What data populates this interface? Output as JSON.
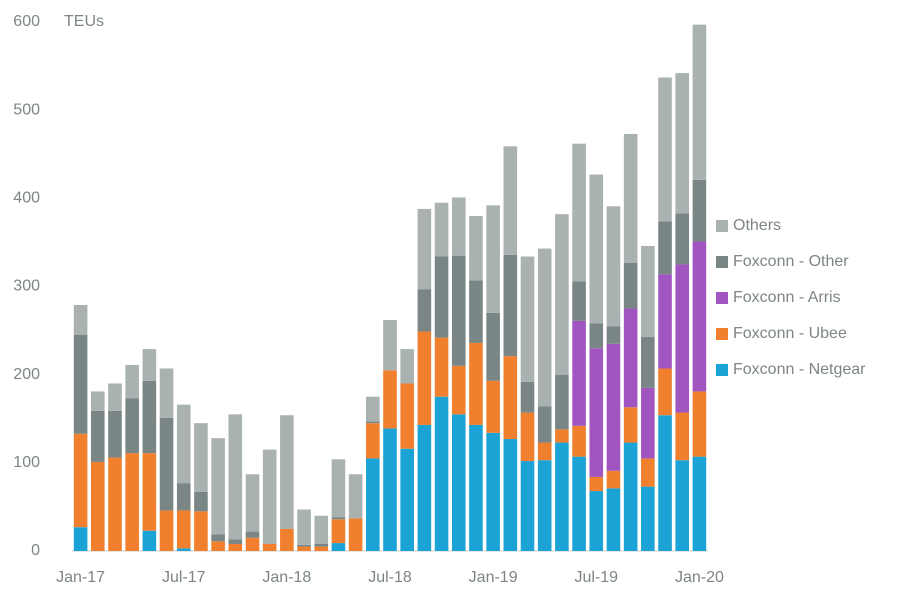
{
  "chart_data": {
    "type": "stacked_bar",
    "y_label": "TEUs",
    "categories": [
      "Jan-17",
      null,
      null,
      null,
      null,
      null,
      "Jul-17",
      null,
      null,
      null,
      null,
      null,
      "Jan-18",
      null,
      null,
      null,
      null,
      null,
      "Jul-18",
      null,
      null,
      null,
      null,
      null,
      "Jan-19",
      null,
      null,
      null,
      null,
      null,
      "Jul-19",
      null,
      null,
      null,
      null,
      null,
      "Jan-20"
    ],
    "series": [
      {
        "name": "Foxconn - Netgear",
        "color": "#1ba3d6",
        "values": [
          27,
          0,
          0,
          0,
          23,
          0,
          3,
          0,
          0,
          0,
          0,
          0,
          0,
          0,
          0,
          9,
          0,
          105,
          139,
          116,
          143,
          175,
          155,
          143,
          134,
          127,
          102,
          103,
          123,
          107,
          68,
          71,
          123,
          73,
          154,
          103,
          107
        ]
      },
      {
        "name": "Foxconn - Ubee",
        "color": "#f07f2e",
        "values": [
          106,
          101,
          106,
          111,
          88,
          46,
          43,
          45,
          11,
          8,
          15,
          8,
          25,
          5,
          5,
          27,
          37,
          40,
          66,
          74,
          106,
          67,
          55,
          93,
          59,
          94,
          55,
          20,
          15,
          35,
          16,
          20,
          40,
          32,
          53,
          54,
          74
        ]
      },
      {
        "name": "Foxconn - Arris",
        "color": "#a155c0",
        "values": [
          0,
          0,
          0,
          0,
          0,
          0,
          0,
          0,
          0,
          0,
          0,
          0,
          0,
          0,
          0,
          0,
          0,
          0,
          0,
          0,
          0,
          0,
          0,
          0,
          0,
          0,
          0,
          0,
          0,
          119,
          146,
          144,
          112,
          80,
          107,
          168,
          170
        ]
      },
      {
        "name": "Foxconn - Other",
        "color": "#7a8686",
        "values": [
          112,
          58,
          53,
          62,
          82,
          105,
          31,
          22,
          8,
          5,
          7,
          0,
          0,
          2,
          3,
          2,
          0,
          2,
          0,
          0,
          48,
          92,
          125,
          71,
          77,
          115,
          35,
          41,
          62,
          45,
          28,
          20,
          52,
          58,
          60,
          58,
          70
        ]
      },
      {
        "name": "Others",
        "color": "#a9b1b1",
        "values": [
          34,
          22,
          31,
          38,
          36,
          56,
          89,
          78,
          109,
          142,
          65,
          107,
          129,
          40,
          32,
          66,
          50,
          28,
          57,
          39,
          91,
          61,
          66,
          73,
          122,
          123,
          142,
          179,
          182,
          156,
          169,
          136,
          146,
          103,
          163,
          159,
          176
        ]
      }
    ],
    "ylim": [
      0,
      600
    ],
    "yticks": [
      0,
      100,
      200,
      300,
      400,
      500,
      600
    ],
    "legend": "right"
  }
}
